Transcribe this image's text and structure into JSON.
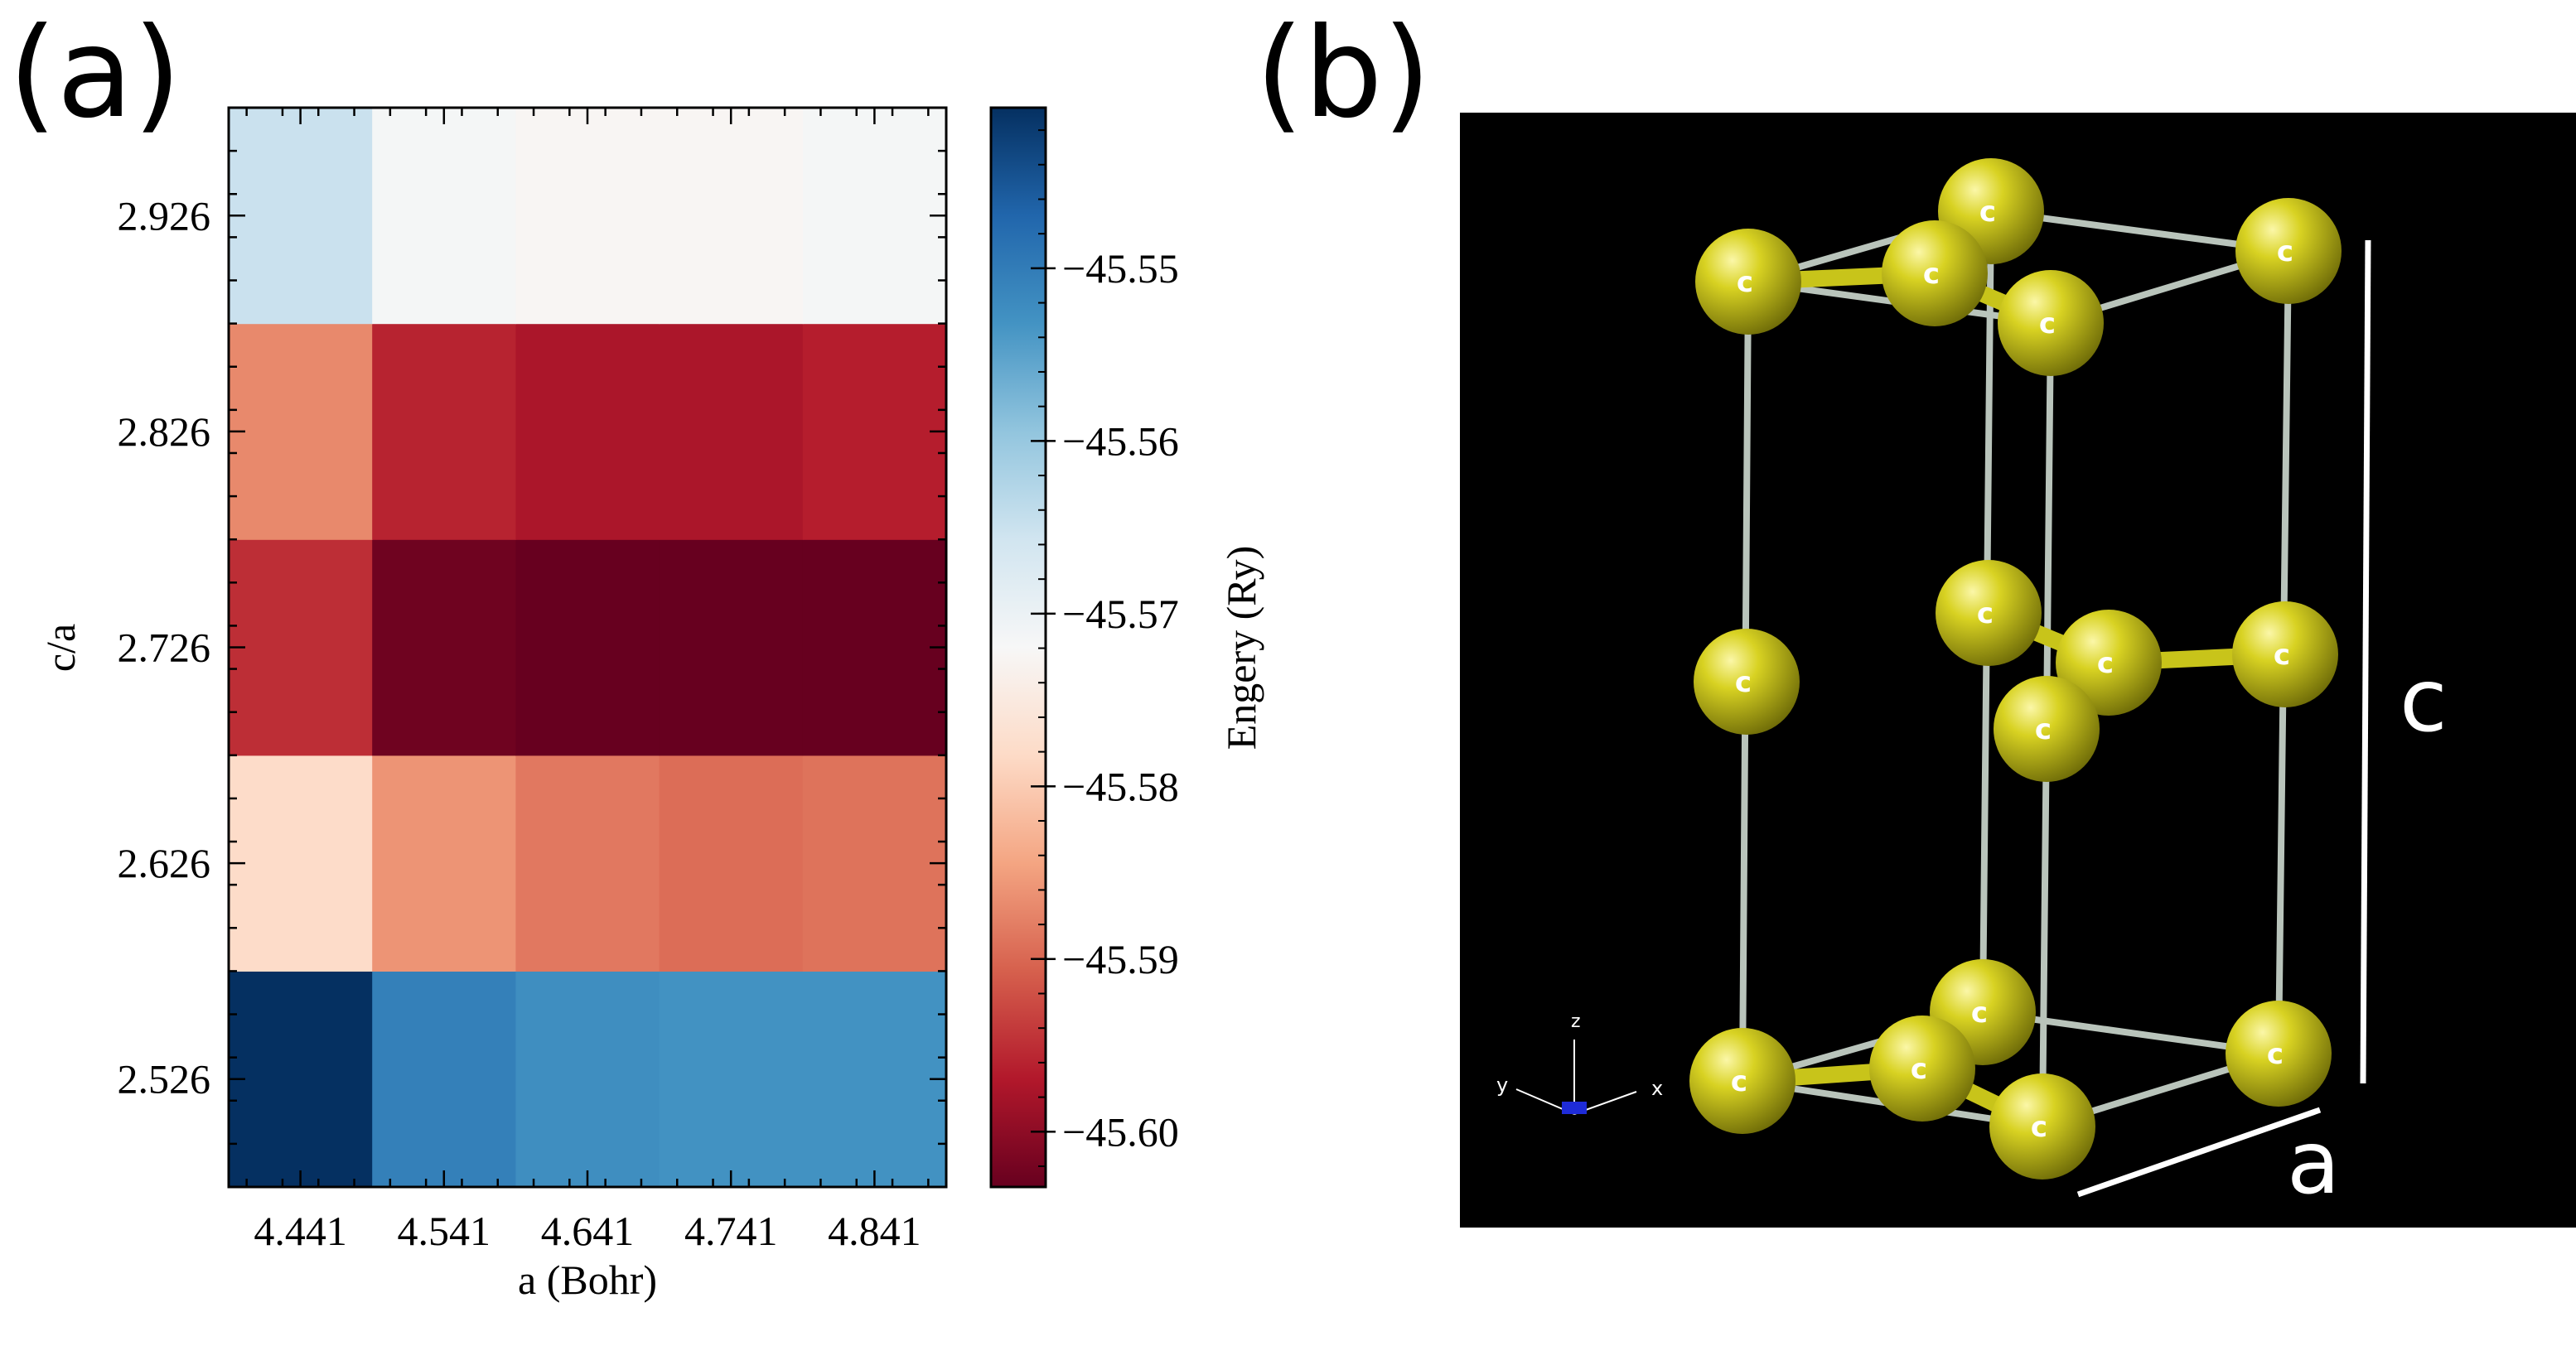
{
  "panels": {
    "a_label": "(a)",
    "b_label": "(b)"
  },
  "chart_data": {
    "type": "heatmap",
    "xlabel": "a (Bohr)",
    "ylabel": "c/a",
    "x": [
      4.441,
      4.541,
      4.641,
      4.741,
      4.841
    ],
    "x_tick_labels": [
      "4.441",
      "4.541",
      "4.641",
      "4.741",
      "4.841"
    ],
    "y": [
      2.526,
      2.626,
      2.726,
      2.826,
      2.926
    ],
    "y_tick_labels": [
      "2.526",
      "2.626",
      "2.726",
      "2.826",
      "2.926"
    ],
    "z": [
      [
        -45.5405,
        -45.5505,
        -45.5525,
        -45.553,
        -45.553
      ],
      [
        -45.578,
        -45.586,
        -45.5885,
        -45.5895,
        -45.589
      ],
      [
        -45.595,
        -45.6025,
        -45.604,
        -45.604,
        -45.6035
      ],
      [
        -45.587,
        -45.596,
        -45.5975,
        -45.5975,
        -45.5965
      ],
      [
        -45.565,
        -45.5715,
        -45.5725,
        -45.5725,
        -45.5715
      ]
    ],
    "colorbar": {
      "label": "Engery (Ry)",
      "colormap": "RdBu",
      "range": [
        -45.6032,
        -45.5407
      ],
      "ticks": [
        -45.55,
        -45.56,
        -45.57,
        -45.58,
        -45.59,
        -45.6
      ],
      "tick_labels": [
        "−45.55",
        "−45.56",
        "−45.57",
        "−45.58",
        "−45.59",
        "−45.60"
      ]
    }
  },
  "structure": {
    "atom_label": "c",
    "axes": {
      "x": "x",
      "y": "y",
      "z": "z"
    },
    "dimension_c": "c",
    "dimension_a": "a",
    "colors": {
      "background": "#000000",
      "atom": "#c8c41a",
      "bond": "#b9c4bb",
      "dimension_line": "#ffffff"
    }
  }
}
